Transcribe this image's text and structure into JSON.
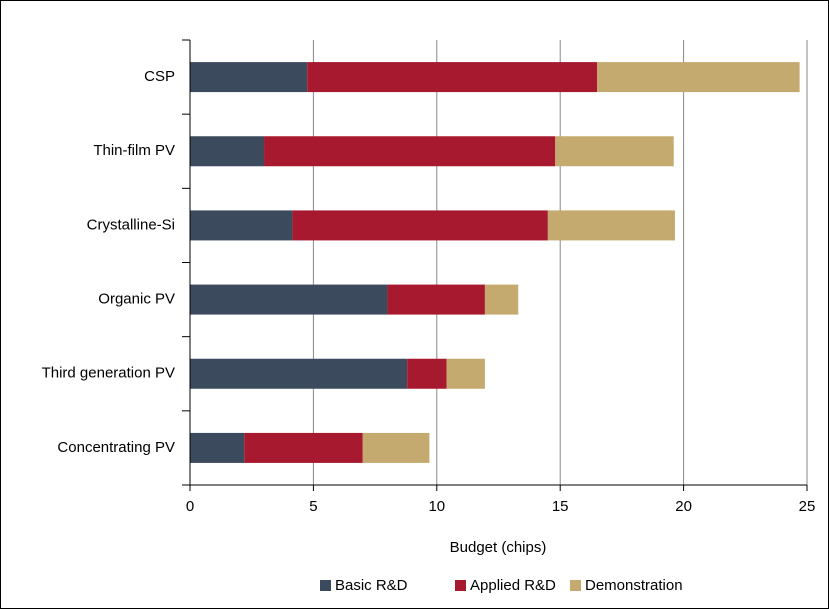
{
  "chart_data": {
    "type": "stacked_barh",
    "xlabel": "Budget (chips)",
    "categories": [
      "CSP",
      "Thin-film PV",
      "Crystalline-Si",
      "Organic PV",
      "Third generation PV",
      "Concentrating PV"
    ],
    "series": [
      {
        "name": "Basic R&D",
        "color": "#3b4a5c",
        "values": [
          4.75,
          3.0,
          4.15,
          8.0,
          8.8,
          2.2
        ]
      },
      {
        "name": "Applied R&D",
        "color": "#a6192e",
        "values": [
          11.75,
          11.8,
          10.35,
          3.95,
          1.6,
          4.8
        ]
      },
      {
        "name": "Demonstration",
        "color": "#c4aa6e",
        "values": [
          8.2,
          4.8,
          5.15,
          1.35,
          1.55,
          2.7
        ]
      }
    ],
    "xlim": [
      0,
      25
    ],
    "xticks": [
      0,
      5,
      10,
      15,
      20,
      25
    ],
    "grid": true,
    "legend": "bottom"
  }
}
